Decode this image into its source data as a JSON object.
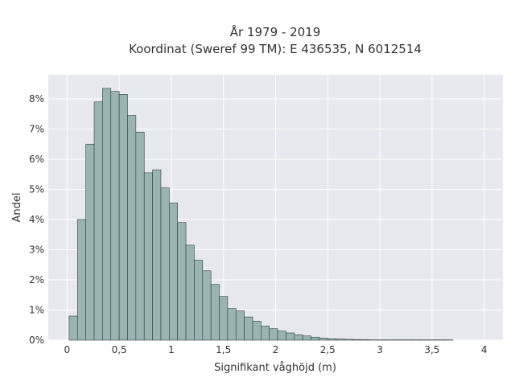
{
  "chart_data": {
    "type": "bar",
    "title_line1": "År 1979 - 2019",
    "title_line2": "Koordinat (Sweref 99 TM): E 436535, N 6012514",
    "xlabel": "Signifikant våghöjd (m)",
    "ylabel": "Andel",
    "xlim": [
      -0.18,
      4.18
    ],
    "ylim": [
      0,
      8.8
    ],
    "x_ticks": [
      0,
      0.5,
      1,
      1.5,
      2,
      2.5,
      3,
      3.5,
      4
    ],
    "x_tick_labels": [
      "0",
      "0,5",
      "1",
      "1,5",
      "2",
      "2,5",
      "3",
      "3,5",
      "4"
    ],
    "y_ticks": [
      0,
      1,
      2,
      3,
      4,
      5,
      6,
      7,
      8
    ],
    "y_tick_labels": [
      "0%",
      "1%",
      "2%",
      "3%",
      "4%",
      "5%",
      "6%",
      "7%",
      "8%"
    ],
    "grid": true,
    "colors": {
      "plot_background": "#e8e8f0",
      "grid": "#ffffff",
      "bar_fill": "#9ab4b4",
      "bar_stroke": "#2f3f3f"
    },
    "bin_width": 0.08,
    "bin_start": 0.02,
    "values": [
      0.8,
      4.0,
      6.5,
      7.9,
      8.35,
      8.25,
      8.15,
      7.45,
      6.9,
      5.55,
      5.65,
      5.05,
      4.55,
      3.9,
      3.15,
      2.65,
      2.3,
      1.85,
      1.45,
      1.05,
      0.97,
      0.77,
      0.63,
      0.47,
      0.38,
      0.3,
      0.24,
      0.18,
      0.14,
      0.1,
      0.07,
      0.05,
      0.04,
      0.03,
      0.02,
      0.015,
      0.01,
      0.01,
      0.01,
      0.01,
      0.01,
      0.01,
      0.01,
      0.01,
      0.01,
      0.01
    ]
  }
}
